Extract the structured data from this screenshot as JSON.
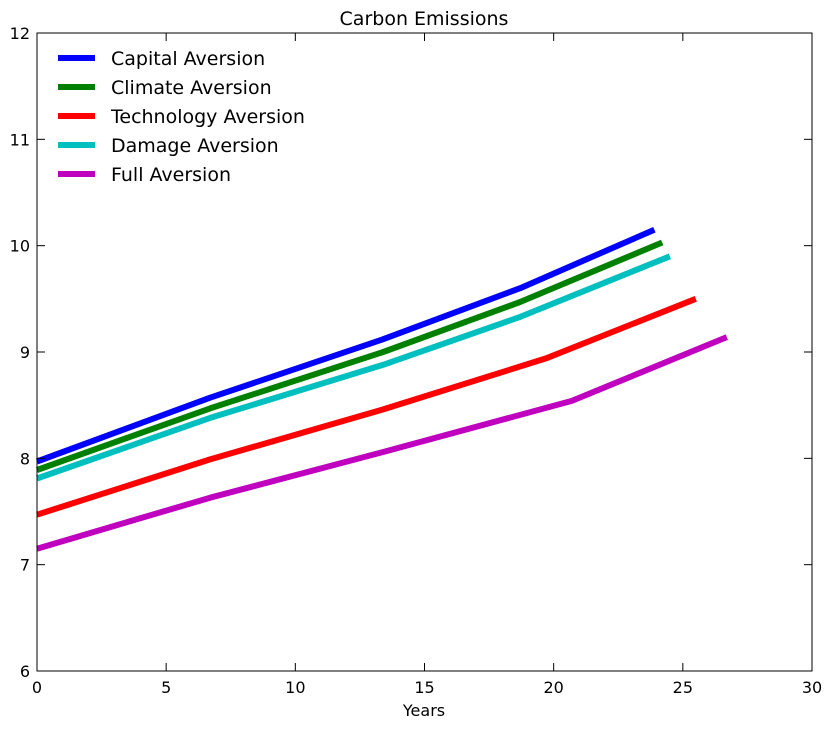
{
  "chart_data": {
    "type": "line",
    "title": "Carbon Emissions",
    "xlabel": "Years",
    "ylabel": "",
    "xlim": [
      0,
      30
    ],
    "ylim": [
      6,
      12
    ],
    "xticks": [
      0,
      5,
      10,
      15,
      20,
      25,
      30
    ],
    "yticks": [
      6,
      7,
      8,
      9,
      10,
      11,
      12
    ],
    "grid": false,
    "legend_position": "top-left",
    "series": [
      {
        "name": "Capital Aversion",
        "color": "#0000ff",
        "x": [
          0,
          6.7,
          13.4,
          18.7,
          23.9
        ],
        "y": [
          7.97,
          8.57,
          9.12,
          9.6,
          10.15
        ]
      },
      {
        "name": "Climate Aversion",
        "color": "#008000",
        "x": [
          0,
          6.7,
          13.4,
          18.7,
          24.2
        ],
        "y": [
          7.89,
          8.47,
          9.0,
          9.47,
          10.03
        ]
      },
      {
        "name": "Technology Aversion",
        "color": "#ff0000",
        "x": [
          0,
          6.7,
          13.4,
          19.7,
          25.5
        ],
        "y": [
          7.47,
          7.99,
          8.46,
          8.94,
          9.5
        ]
      },
      {
        "name": "Damage Aversion",
        "color": "#00bfbf",
        "x": [
          0,
          6.7,
          13.4,
          18.7,
          24.5
        ],
        "y": [
          7.81,
          8.38,
          8.88,
          9.33,
          9.9
        ]
      },
      {
        "name": "Full Aversion",
        "color": "#bf00bf",
        "x": [
          0,
          6.7,
          13.4,
          20.7,
          26.7
        ],
        "y": [
          7.15,
          7.63,
          8.06,
          8.54,
          9.14
        ]
      }
    ]
  }
}
